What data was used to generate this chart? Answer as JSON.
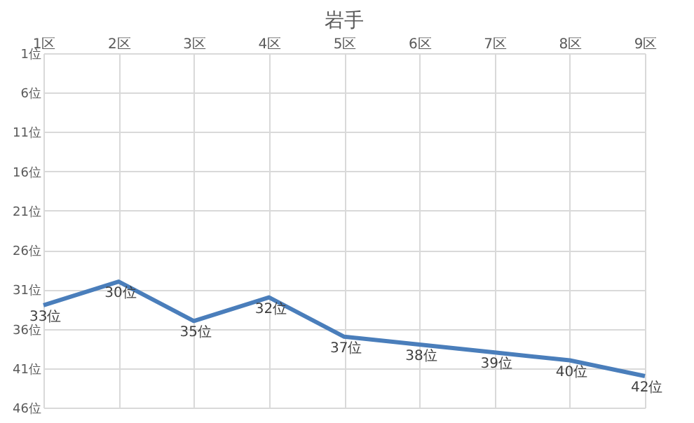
{
  "chart_data": {
    "type": "line",
    "title": "岩手",
    "categories": [
      "1区",
      "2区",
      "3区",
      "4区",
      "5区",
      "6区",
      "7区",
      "8区",
      "9区"
    ],
    "series": [
      {
        "color": "#4a7ebb",
        "values": [
          33,
          30,
          35,
          32,
          37,
          38,
          39,
          40,
          42
        ],
        "value_labels": [
          "33位",
          "30位",
          "35位",
          "32位",
          "37位",
          "38位",
          "39位",
          "40位",
          "42位"
        ]
      }
    ],
    "ylim": [
      46,
      1
    ],
    "yticks": [
      {
        "value": 1,
        "label": "1位"
      },
      {
        "value": 6,
        "label": "6位"
      },
      {
        "value": 11,
        "label": "11位"
      },
      {
        "value": 16,
        "label": "16位"
      },
      {
        "value": 21,
        "label": "21位"
      },
      {
        "value": 26,
        "label": "26位"
      },
      {
        "value": 31,
        "label": "31位"
      },
      {
        "value": 36,
        "label": "36位"
      },
      {
        "value": 41,
        "label": "41位"
      },
      {
        "value": 46,
        "label": "46位"
      }
    ],
    "grid": true,
    "marker": "none",
    "line_style": "solid"
  }
}
